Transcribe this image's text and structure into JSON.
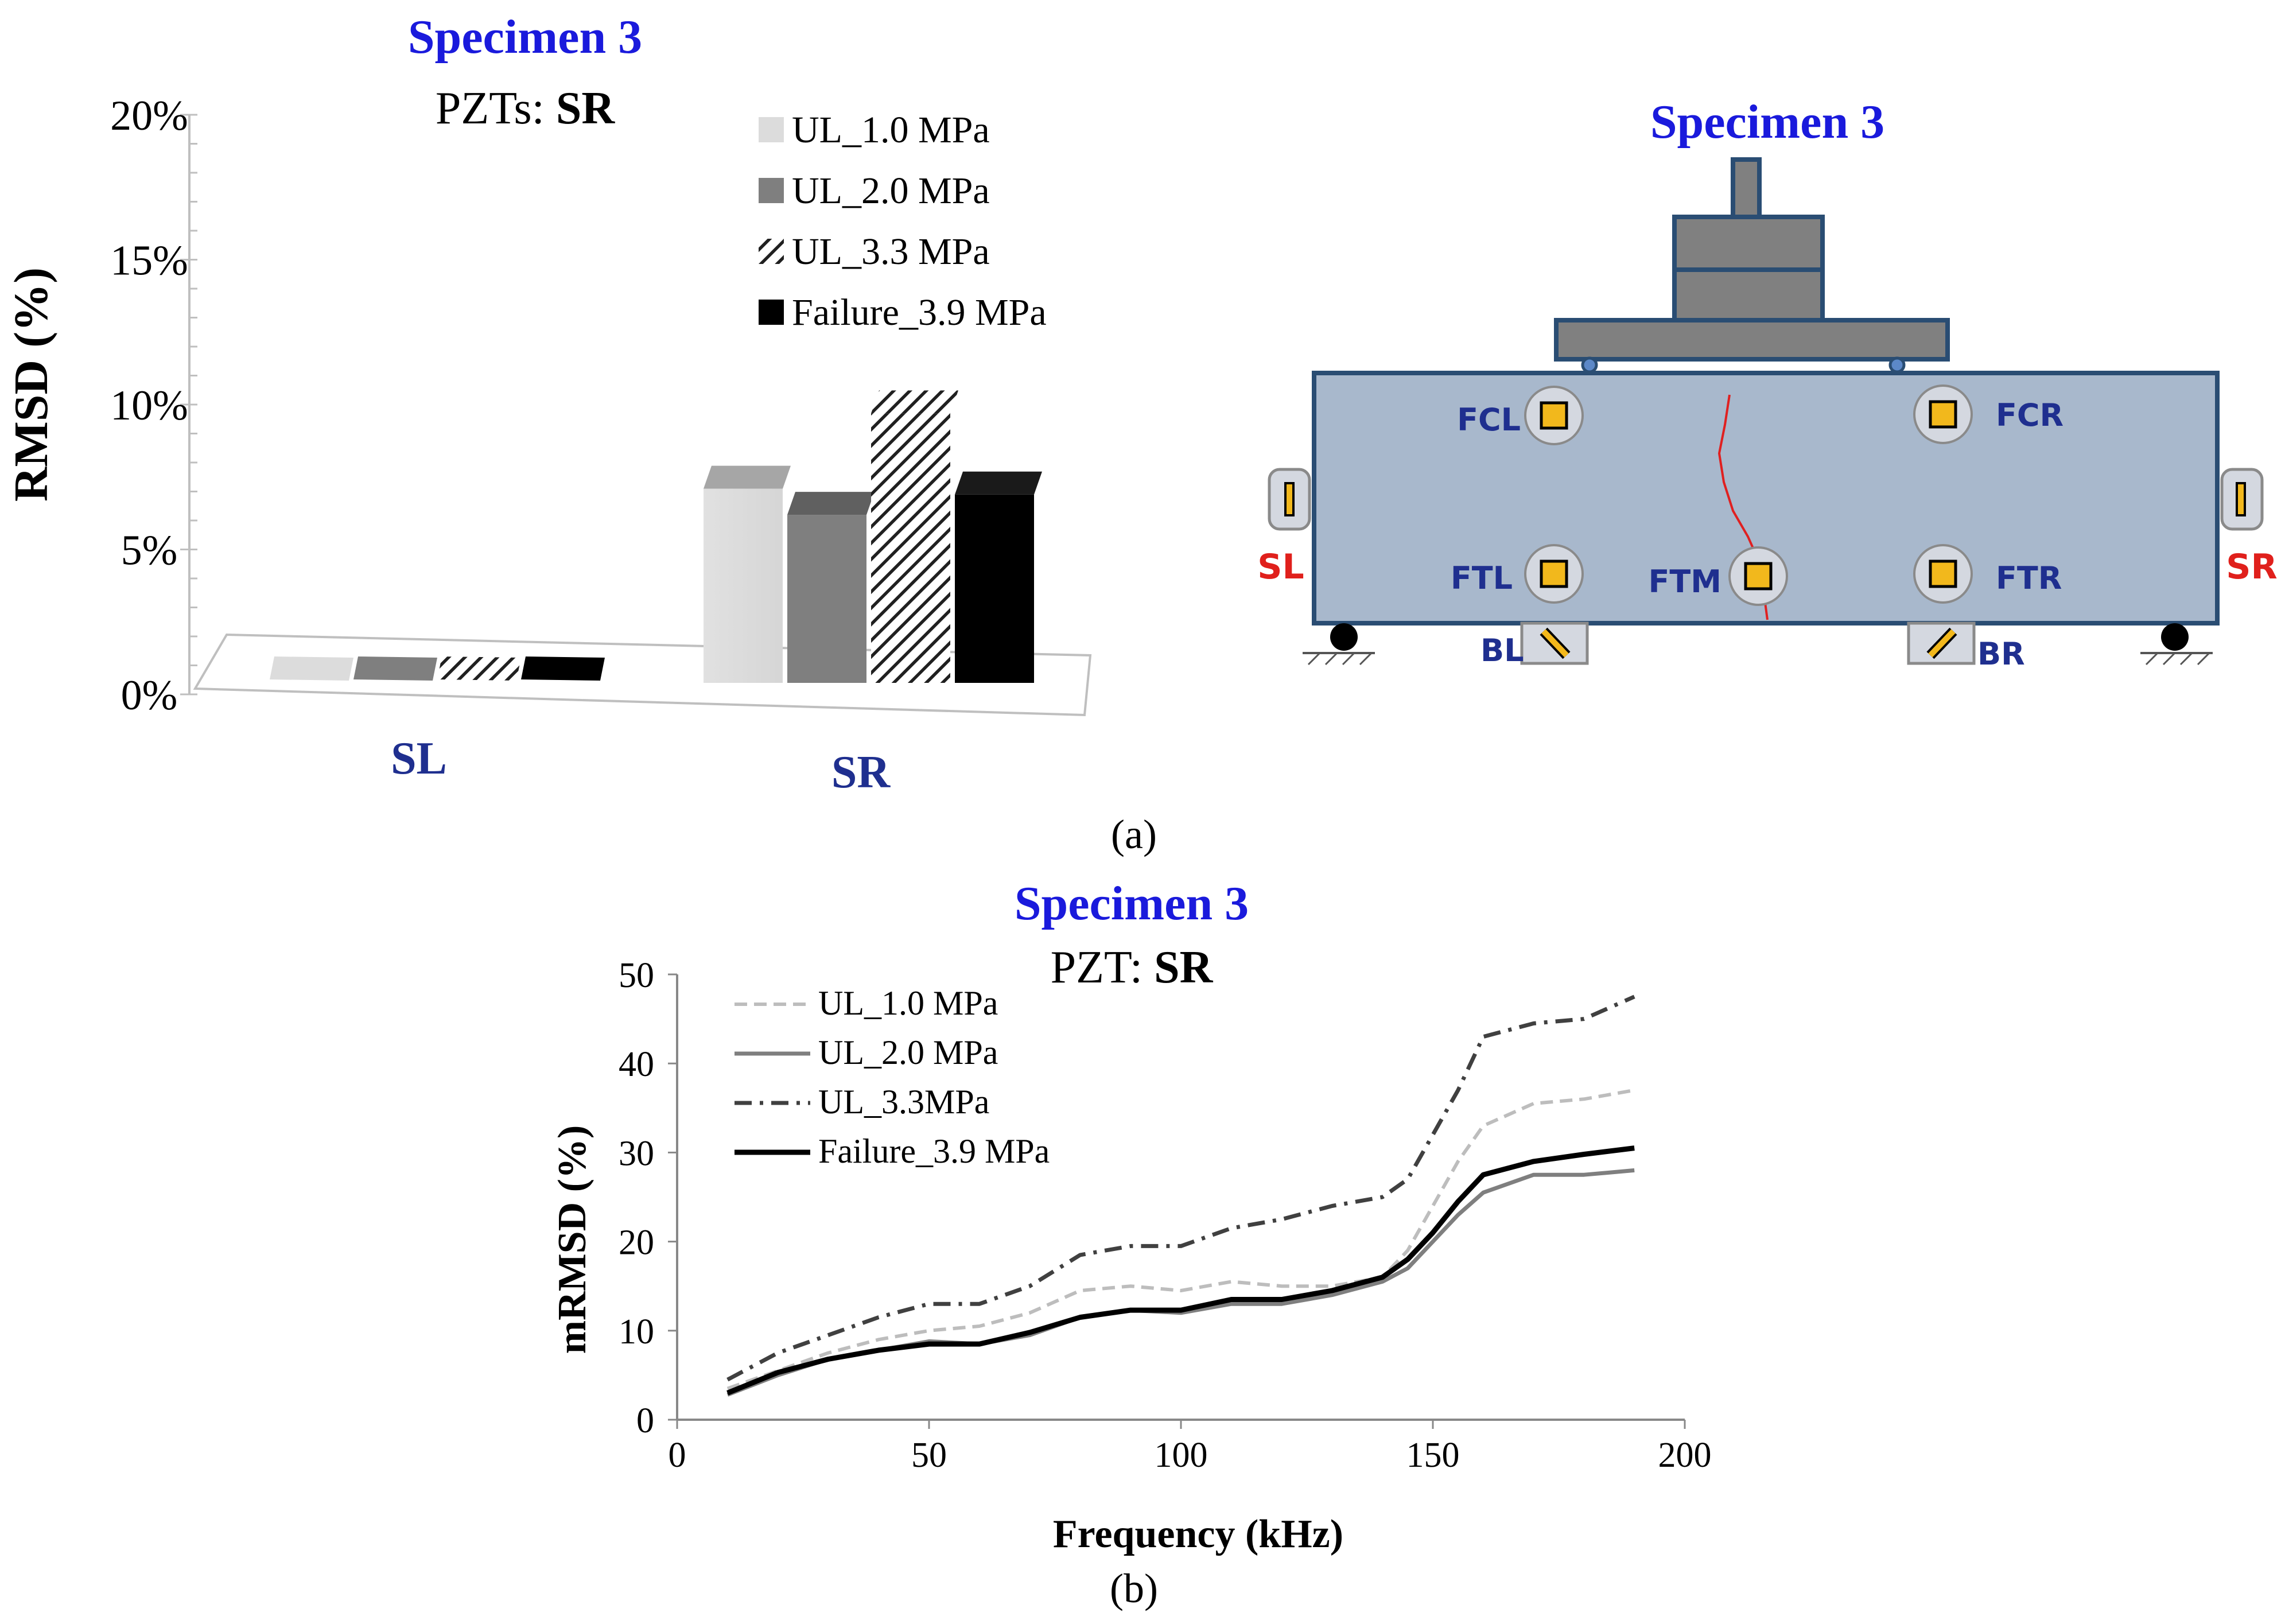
{
  "panel_a_label": "(a)",
  "panel_b_label": "(b)",
  "chart_data": [
    {
      "type": "bar",
      "title": "Specimen 3",
      "subtitle_prefix": "PZTs: ",
      "subtitle_bold": "SR",
      "ylabel": "RMSD (%)",
      "xlabel": "",
      "ylim": [
        0,
        20
      ],
      "yticks": [
        "0%",
        "5%",
        "10%",
        "15%",
        "20%"
      ],
      "categories": [
        "SL",
        "SR"
      ],
      "series": [
        {
          "name": "UL_1.0 MPa",
          "values": [
            0.1,
            6.7
          ]
        },
        {
          "name": "UL_2.0 MPa",
          "values": [
            0.1,
            5.8
          ]
        },
        {
          "name": "UL_3.3 MPa",
          "values": [
            0.1,
            9.3
          ]
        },
        {
          "name": "Failure_3.9 MPa",
          "values": [
            0.1,
            6.5
          ]
        }
      ],
      "legend_position": "top-right",
      "colors": {
        "s1": "#dcdcdc",
        "s2": "#7f7f7f",
        "s3": "hatched",
        "s4": "#000000",
        "title": "#1a1adc",
        "category": "#1f2f8f"
      }
    },
    {
      "type": "line",
      "title": "Specimen 3",
      "subtitle_prefix": "PZT: ",
      "subtitle_bold": "SR",
      "xlabel": "Frequency (kHz)",
      "ylabel": "mRMSD (%)",
      "xlim": [
        0,
        200
      ],
      "ylim": [
        0,
        50
      ],
      "xticks": [
        "0",
        "50",
        "100",
        "150",
        "200"
      ],
      "yticks": [
        "0",
        "10",
        "20",
        "30",
        "40",
        "50"
      ],
      "x": [
        10,
        20,
        30,
        40,
        50,
        60,
        70,
        80,
        90,
        100,
        110,
        120,
        130,
        140,
        145,
        150,
        155,
        160,
        170,
        180,
        190
      ],
      "series": [
        {
          "name": "UL_1.0 MPa",
          "style": "dashed",
          "color": "#bdbdbd",
          "values": [
            3.5,
            5.5,
            7.5,
            9,
            10,
            10.5,
            12,
            14.5,
            15,
            14.5,
            15.5,
            15,
            15,
            16,
            19,
            24,
            29,
            33,
            35.5,
            36,
            37
          ]
        },
        {
          "name": "UL_2.0 MPa",
          "style": "solid",
          "color": "#7f7f7f",
          "values": [
            2.8,
            5,
            6.8,
            7.8,
            8.8,
            8.5,
            9.5,
            11.5,
            12.3,
            12,
            13,
            13,
            14,
            15.5,
            17,
            20,
            23,
            25.5,
            27.5,
            27.5,
            28
          ]
        },
        {
          "name": "UL_3.3MPa",
          "style": "dash-dot",
          "color": "#404040",
          "values": [
            4.5,
            7.5,
            9.5,
            11.5,
            13,
            13,
            15,
            18.5,
            19.5,
            19.5,
            21.5,
            22.5,
            24,
            25,
            27,
            32,
            37,
            43,
            44.5,
            45,
            47.5
          ]
        },
        {
          "name": "Failure_3.9 MPa",
          "style": "solid-bold",
          "color": "#000000",
          "values": [
            3,
            5.3,
            6.8,
            7.8,
            8.5,
            8.5,
            9.8,
            11.5,
            12.3,
            12.3,
            13.5,
            13.5,
            14.5,
            16,
            18,
            21,
            24.5,
            27.5,
            29,
            29.8,
            30.5
          ]
        }
      ],
      "legend_position": "top-left"
    }
  ],
  "diagram": {
    "title": "Specimen 3",
    "sensors": {
      "FCL": "FCL",
      "FCR": "FCR",
      "FTL": "FTL",
      "FTM": "FTM",
      "FTR": "FTR",
      "BL": "BL",
      "BR": "BR",
      "SL": "SL",
      "SR": "SR"
    },
    "colors": {
      "beam": "#a8b8cc",
      "frame": "#2a4d73",
      "loading": "#808080",
      "sensor": "#f2b81c",
      "label": "#1f2f8f",
      "side_label": "#e0201c",
      "crack": "#e02020"
    }
  }
}
